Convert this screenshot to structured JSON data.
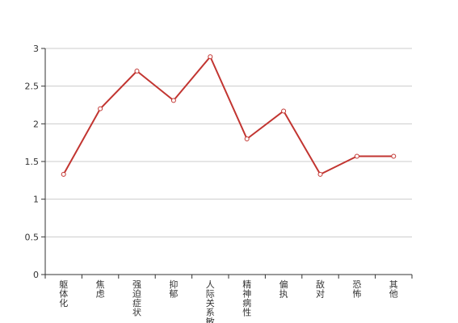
{
  "chart_data": {
    "type": "line",
    "title": "",
    "xlabel": "",
    "ylabel": "",
    "categories": [
      "躯体化",
      "焦虑",
      "强迫症状",
      "抑郁",
      "人际关系敏感",
      "精神病性",
      "偏执",
      "敌对",
      "恐怖",
      "其他"
    ],
    "series": [
      {
        "values": [
          1.33,
          2.2,
          2.7,
          2.31,
          2.89,
          1.8,
          2.17,
          1.33,
          1.57,
          1.57
        ]
      }
    ],
    "ylim": [
      0,
      3
    ],
    "yticks": [
      0,
      0.5,
      1,
      1.5,
      2,
      2.5,
      3
    ],
    "ytick_labels": [
      "0",
      "0.5",
      "1",
      "1.5",
      "2",
      "2.5",
      "3"
    ],
    "grid": true,
    "legend": "none",
    "colors": {
      "line": "#c23531",
      "grid": "#cccccc",
      "axis": "#333333",
      "text": "#333333"
    }
  }
}
